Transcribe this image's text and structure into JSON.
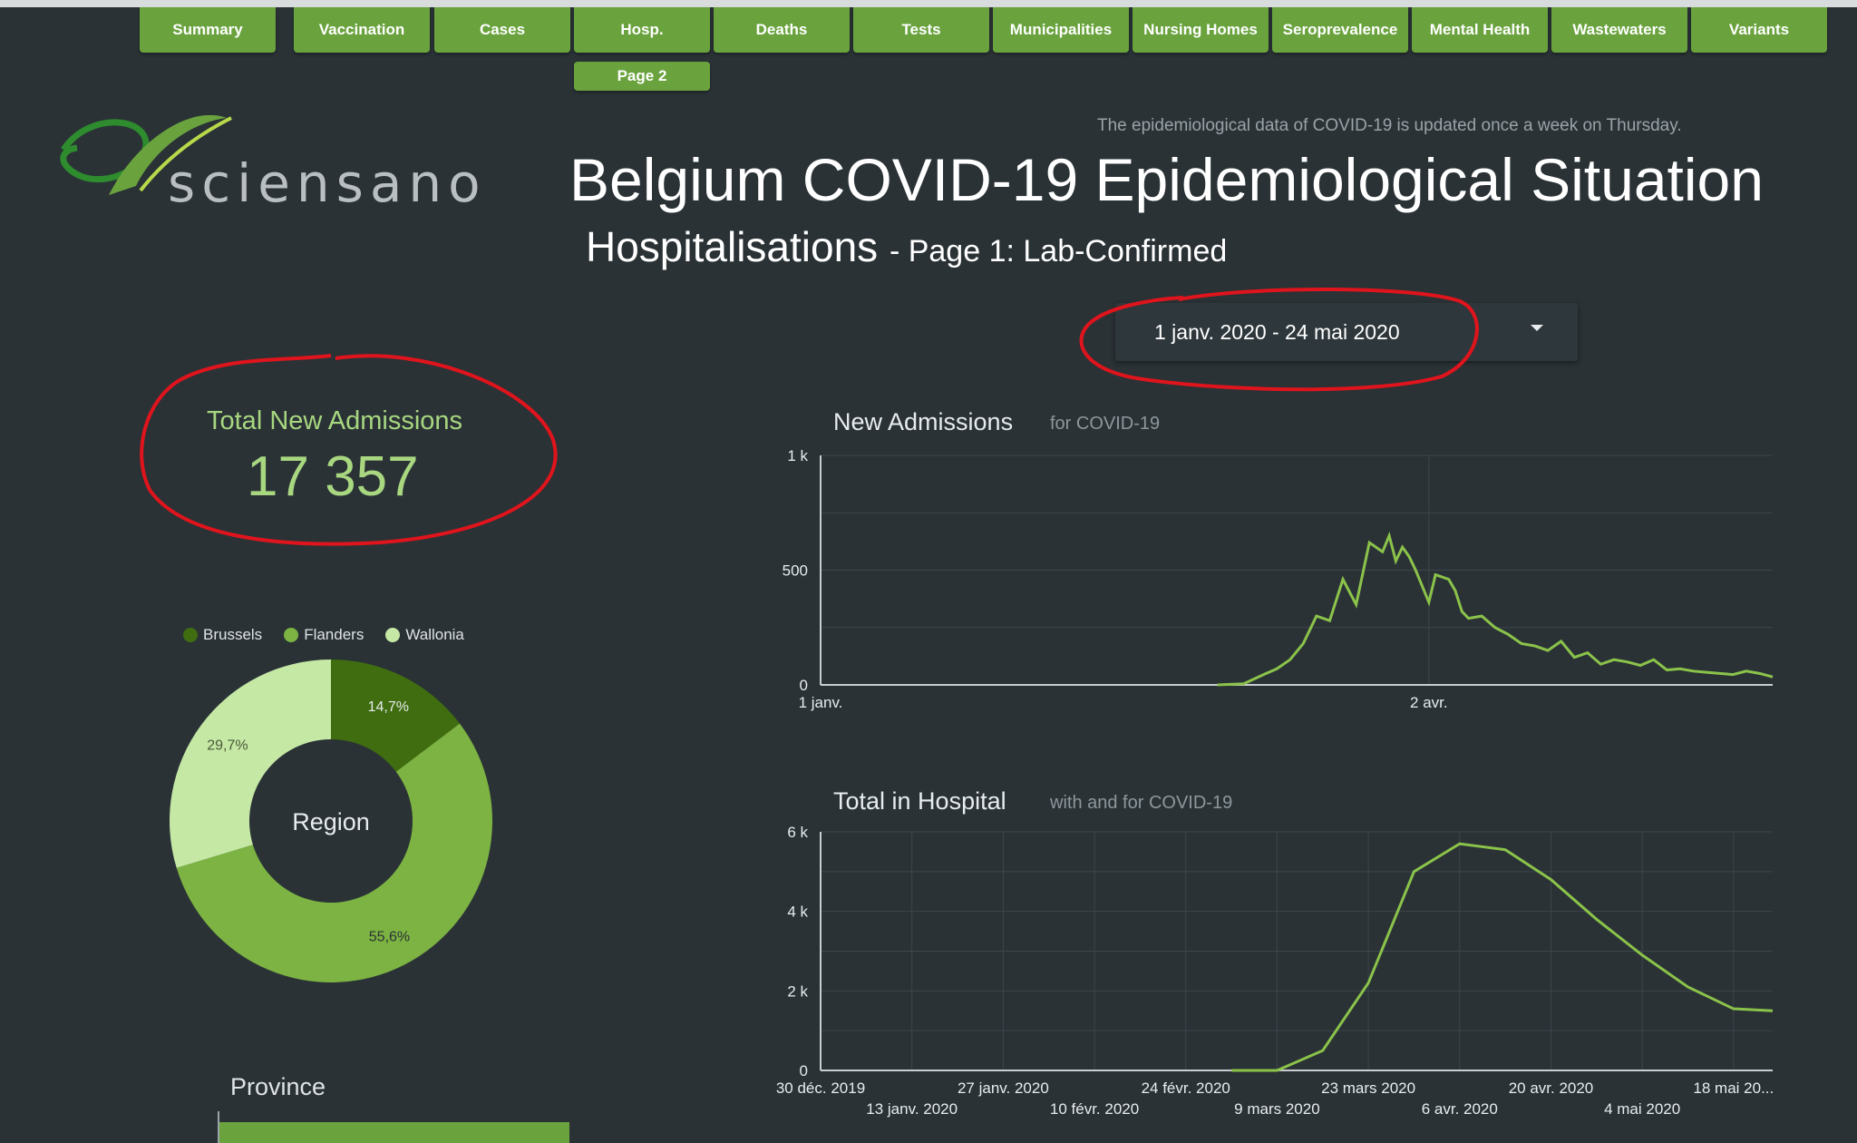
{
  "nav": {
    "tabs": [
      "Summary",
      "Vaccination",
      "Cases",
      "Hosp.",
      "Deaths",
      "Tests",
      "Municipalities",
      "Nursing Homes",
      "Seroprevalence",
      "Mental Health",
      "Wastewaters",
      "Variants"
    ],
    "subtab": "Page 2"
  },
  "logo": {
    "text": "sciensano"
  },
  "header": {
    "update_note": "The epidemiological data of COVID-19 is updated once a week on Thursday.",
    "title": "Belgium COVID-19 Epidemiological Situation",
    "subtitle": "Hospitalisations",
    "subtitle_suffix": "- Page 1: Lab-Confirmed"
  },
  "date_range": {
    "value": "1 janv. 2020 - 24 mai 2020"
  },
  "kpi": {
    "label": "Total New Admissions",
    "value": "17 357"
  },
  "colors": {
    "brussels": "#3f6d10",
    "flanders": "#7cb342",
    "wallonia": "#c5e8a5",
    "line": "#8bc34a",
    "annotation": "#e0141c"
  },
  "region_chart": {
    "center_label": "Region",
    "legend": [
      "Brussels",
      "Flanders",
      "Wallonia"
    ],
    "labels": [
      "14,7%",
      "55,6%",
      "29,7%"
    ]
  },
  "province": {
    "label": "Province"
  },
  "chart_data": [
    {
      "type": "pie",
      "title": "Region",
      "categories": [
        "Brussels",
        "Flanders",
        "Wallonia"
      ],
      "values": [
        14.7,
        55.6,
        29.7
      ]
    },
    {
      "type": "line",
      "title": "New Admissions",
      "subtitle": "for COVID-19",
      "ylim": [
        0,
        1000
      ],
      "yticks": [
        "0",
        "500",
        "1 k"
      ],
      "xticks": [
        "1 janv.",
        "2 avr."
      ],
      "x": [
        "2020-03-01",
        "2020-03-05",
        "2020-03-08",
        "2020-03-10",
        "2020-03-12",
        "2020-03-14",
        "2020-03-16",
        "2020-03-18",
        "2020-03-20",
        "2020-03-22",
        "2020-03-24",
        "2020-03-26",
        "2020-03-27",
        "2020-03-28",
        "2020-03-29",
        "2020-03-30",
        "2020-03-31",
        "2020-04-02",
        "2020-04-03",
        "2020-04-04",
        "2020-04-05",
        "2020-04-06",
        "2020-04-07",
        "2020-04-08",
        "2020-04-10",
        "2020-04-12",
        "2020-04-14",
        "2020-04-16",
        "2020-04-18",
        "2020-04-20",
        "2020-04-22",
        "2020-04-24",
        "2020-04-26",
        "2020-04-28",
        "2020-04-30",
        "2020-05-02",
        "2020-05-04",
        "2020-05-06",
        "2020-05-08",
        "2020-05-10",
        "2020-05-12",
        "2020-05-14",
        "2020-05-16",
        "2020-05-18",
        "2020-05-20",
        "2020-05-22",
        "2020-05-24"
      ],
      "series": [
        {
          "values": [
            0,
            5,
            45,
            70,
            110,
            180,
            300,
            280,
            460,
            350,
            620,
            580,
            650,
            540,
            600,
            560,
            500,
            360,
            480,
            470,
            460,
            410,
            320,
            290,
            300,
            250,
            220,
            180,
            170,
            150,
            190,
            120,
            140,
            90,
            110,
            100,
            85,
            110,
            65,
            70,
            60,
            55,
            50,
            45,
            60,
            50,
            35
          ]
        }
      ]
    },
    {
      "type": "line",
      "title": "Total in Hospital",
      "subtitle": "with and for COVID-19",
      "ylim": [
        0,
        6000
      ],
      "yticks": [
        "0",
        "2 k",
        "4 k",
        "6 k"
      ],
      "xticks": [
        "30 déc. 2019",
        "13 janv. 2020",
        "27 janv. 2020",
        "10 févr. 2020",
        "24 févr. 2020",
        "9 mars 2020",
        "23 mars 2020",
        "6 avr. 2020",
        "20 avr. 2020",
        "4 mai 2020",
        "18 mai 20..."
      ],
      "x": [
        "2020-03-02",
        "2020-03-09",
        "2020-03-16",
        "2020-03-23",
        "2020-03-30",
        "2020-04-06",
        "2020-04-13",
        "2020-04-20",
        "2020-04-27",
        "2020-05-04",
        "2020-05-11",
        "2020-05-18",
        "2020-05-24"
      ],
      "series": [
        {
          "values": [
            0,
            0,
            500,
            2200,
            5000,
            5700,
            5550,
            4800,
            3800,
            2900,
            2100,
            1550,
            1500
          ]
        }
      ]
    }
  ]
}
